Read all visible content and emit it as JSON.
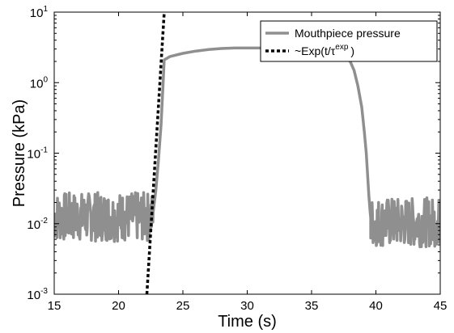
{
  "chart_data": {
    "type": "line",
    "xlabel": "Time (s)",
    "ylabel": "Pressure (kPa)",
    "xlim": [
      15,
      45
    ],
    "ylim": [
      0.001,
      10
    ],
    "y_scale": "log",
    "grid": false,
    "legend_position": "top-right",
    "x_ticks": [
      {
        "value": 15,
        "label": "15"
      },
      {
        "value": 20,
        "label": "20"
      },
      {
        "value": 25,
        "label": "25"
      },
      {
        "value": 30,
        "label": "30"
      },
      {
        "value": 35,
        "label": "35"
      },
      {
        "value": 40,
        "label": "40"
      },
      {
        "value": 45,
        "label": "45"
      }
    ],
    "y_ticks": [
      {
        "value": 0.001,
        "base": "10",
        "exp": "-3"
      },
      {
        "value": 0.01,
        "base": "10",
        "exp": "-2"
      },
      {
        "value": 0.1,
        "base": "10",
        "exp": "-1"
      },
      {
        "value": 1,
        "base": "10",
        "exp": "0"
      },
      {
        "value": 10,
        "base": "10",
        "exp": "1"
      }
    ],
    "series": [
      {
        "name": "Mouthpiece pressure",
        "color": "#8f8f8f",
        "style": "solid",
        "noise_segments": [
          {
            "x_start": 15.0,
            "x_end": 22.7,
            "center": 0.0125,
            "spread": 0.35
          },
          {
            "x_start": 39.6,
            "x_end": 45.0,
            "center": 0.0105,
            "spread": 0.35
          }
        ],
        "x": [
          22.7,
          22.9,
          23.1,
          23.3,
          23.45,
          23.55,
          24,
          25,
          26,
          27,
          28,
          29,
          30,
          31,
          32,
          33,
          34,
          35,
          36,
          37,
          37.5,
          38,
          38.3,
          38.6,
          38.9,
          39.1,
          39.25,
          39.35,
          39.45,
          39.55,
          39.6
        ],
        "y": [
          0.015,
          0.03,
          0.08,
          0.25,
          0.9,
          2.1,
          2.35,
          2.6,
          2.8,
          2.95,
          3.05,
          3.1,
          3.1,
          3.1,
          3.05,
          3.0,
          2.95,
          2.9,
          2.8,
          2.6,
          2.4,
          2.0,
          1.5,
          0.9,
          0.45,
          0.2,
          0.1,
          0.05,
          0.025,
          0.015,
          0.012
        ]
      },
      {
        "name": "~Exp(t/τ",
        "legend_sup": "exp",
        "legend_suffix": ")",
        "color": "#000000",
        "style": "dashed",
        "x": [
          22.2,
          23.55
        ],
        "y": [
          0.001,
          10
        ]
      }
    ]
  }
}
